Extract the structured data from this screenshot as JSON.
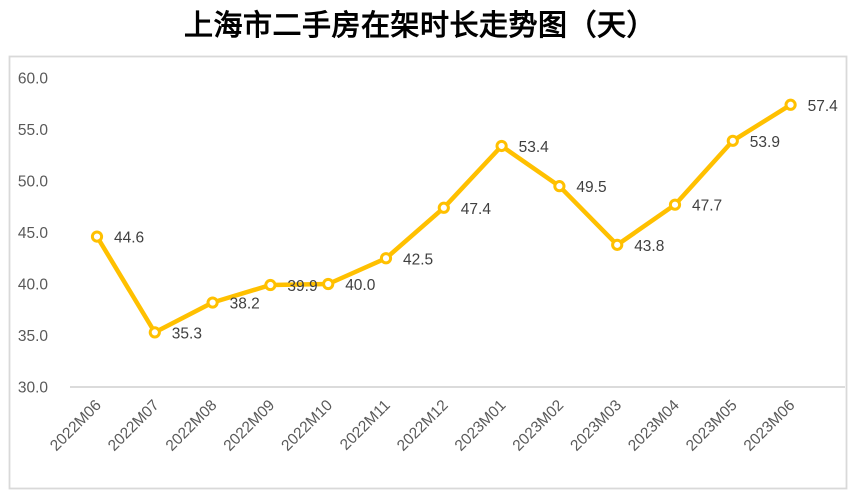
{
  "chart_data": {
    "type": "line",
    "title": "上海市二手房在架时长走势图（天）",
    "categories": [
      "2022M06",
      "2022M07",
      "2022M08",
      "2022M09",
      "2022M10",
      "2022M11",
      "2022M12",
      "2023M01",
      "2023M02",
      "2023M03",
      "2023M04",
      "2023M05",
      "2023M06"
    ],
    "values": [
      44.6,
      35.3,
      38.2,
      39.9,
      40.0,
      42.5,
      47.4,
      53.4,
      49.5,
      43.8,
      47.7,
      53.9,
      57.4
    ],
    "point_labels": [
      "44.6",
      "35.3",
      "38.2",
      "39.9",
      "40.0",
      "42.5",
      "47.4",
      "53.4",
      "49.5",
      "43.8",
      "47.7",
      "53.9",
      "57.4"
    ],
    "y_tick_labels": [
      "60.0",
      "55.0",
      "50.0",
      "45.0",
      "40.0",
      "35.0",
      "30.0"
    ],
    "ylim": [
      30,
      60
    ],
    "y_step": 5,
    "xlabel": "",
    "ylabel": "",
    "grid": false,
    "legend": "none",
    "x_tick_rotation_deg": 45,
    "colors": {
      "line": "#FFC000",
      "marker_stroke": "#FFC000",
      "marker_fill": "#FFFFFF",
      "data_label": "#404040",
      "axis_label": "#595959",
      "axis_line": "#CFCFCF",
      "frame_border": "#D9D9D9",
      "title": "#000000",
      "background": "#FFFFFF"
    }
  }
}
